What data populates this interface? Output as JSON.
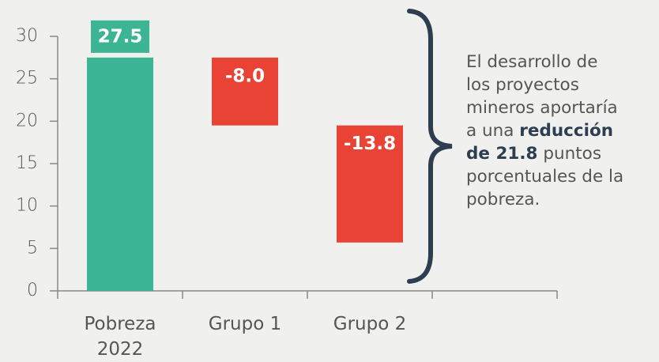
{
  "chart_data": {
    "type": "waterfall",
    "categories": [
      "Pobreza 2022",
      "Grupo 1",
      "Grupo 2"
    ],
    "values": [
      27.5,
      -8.0,
      -13.8
    ],
    "value_labels": [
      "27.5",
      "-8.0",
      "-13.8"
    ],
    "colors": [
      "#3bb593",
      "#e84335",
      "#e84335"
    ],
    "ylim": [
      0,
      30
    ],
    "yticks": [
      0,
      5,
      10,
      15,
      20,
      25,
      30
    ],
    "annotation": [
      [
        {
          "text": "El desarrollo de"
        }
      ],
      [
        {
          "text": "los proyectos"
        }
      ],
      [
        {
          "text": "mineros aportaría"
        }
      ],
      [
        {
          "text": "a una "
        },
        {
          "text": "reducción",
          "bold": true
        }
      ],
      [
        {
          "text": "de 21.8",
          "bold": true
        },
        {
          "text": " puntos"
        }
      ],
      [
        {
          "text": "porcentuales de la"
        }
      ],
      [
        {
          "text": "pobreza."
        }
      ]
    ]
  }
}
